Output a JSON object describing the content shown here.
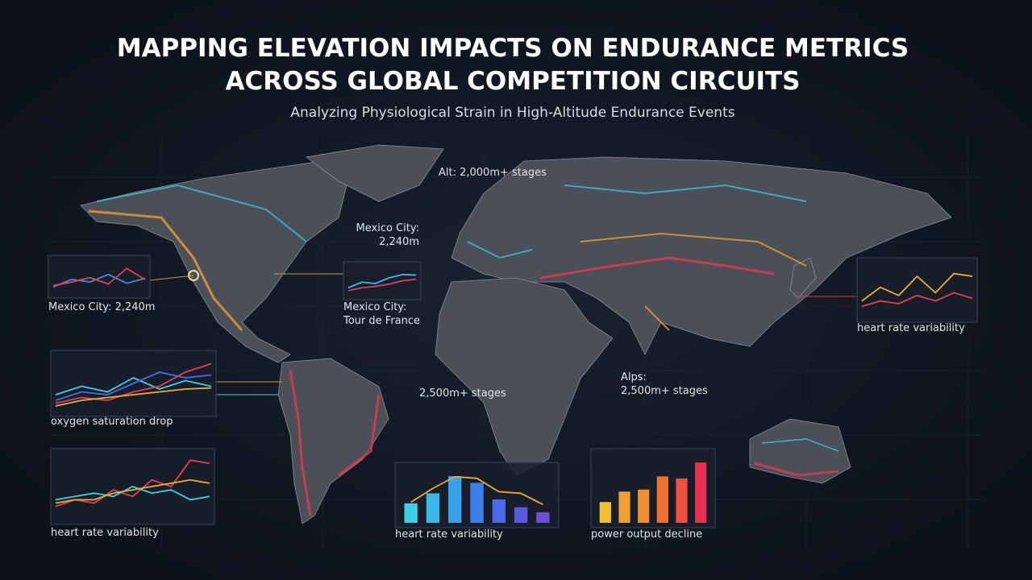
{
  "header": {
    "title": [
      "MAPPING ELEVATION IMPACTS ON ENDURANCE METRICS",
      "ACROSS GLOBAL COMPETITION CIRCUITS"
    ],
    "subtitle": "Analyzing Physiological Strain in High-Altitude Endurance Events"
  },
  "map_labels": [
    {
      "lines": [
        "Alt: 2,000m+ stages"
      ]
    },
    {
      "lines": [
        "Mexico City:",
        "2,240m"
      ]
    },
    {
      "lines": [
        "2,500m+ stages"
      ]
    },
    {
      "lines": [
        "Alps:",
        "2,500m+ stages"
      ]
    }
  ],
  "panels": [
    {
      "type": "line",
      "label": [
        "Mexico City: 2,240m"
      ],
      "ylim": [
        0,
        100
      ],
      "series": [
        {
          "color": "#3a8fe0",
          "values": [
            19,
            42,
            34,
            57,
            30,
            45
          ]
        },
        {
          "color": "#e0405a",
          "values": [
            23,
            34,
            47,
            28,
            75,
            41
          ]
        }
      ]
    },
    {
      "type": "line",
      "label": [
        "Mexico City:",
        "Tour de France"
      ],
      "ylim": [
        0,
        100
      ],
      "series": [
        {
          "color": "#3ab8e8",
          "values": [
            25,
            45,
            40,
            60,
            72,
            70
          ]
        },
        {
          "color": "#e0405a",
          "values": [
            15,
            25,
            30,
            38,
            50,
            55
          ]
        }
      ]
    },
    {
      "type": "line",
      "label": [
        "oxygen saturation drop"
      ],
      "ylim": [
        0,
        100
      ],
      "series": [
        {
          "color": "#3ad0e8",
          "values": [
            30,
            45,
            35,
            60,
            40,
            55,
            45
          ]
        },
        {
          "color": "#4a6ae8",
          "values": [
            20,
            35,
            30,
            50,
            70,
            60,
            65
          ]
        },
        {
          "color": "#e0405a",
          "values": [
            15,
            25,
            20,
            35,
            45,
            70,
            85
          ]
        },
        {
          "color": "#e8b030",
          "values": [
            10,
            20,
            25,
            30,
            35,
            40,
            42
          ]
        }
      ]
    },
    {
      "type": "line",
      "label": [
        "heart rate variability"
      ],
      "ylim": [
        0,
        100
      ],
      "series": [
        {
          "color": "#e0405a",
          "values": [
            20,
            30,
            25,
            45,
            35,
            60,
            50,
            90,
            85
          ]
        },
        {
          "color": "#3ad0e8",
          "values": [
            30,
            35,
            40,
            35,
            50,
            40,
            45,
            30,
            35
          ]
        },
        {
          "color": "#e8b030",
          "values": [
            25,
            30,
            30,
            40,
            45,
            50,
            55,
            60,
            55
          ]
        }
      ]
    },
    {
      "type": "bar",
      "label": [
        "heart rate variability"
      ],
      "ylim": [
        0,
        100
      ],
      "values": [
        35,
        53,
        84,
        72,
        42,
        28,
        19
      ],
      "colors": [
        "#3ad0e8",
        "#3ab8e8",
        "#3aa0e8",
        "#3a80e8",
        "#4a6ae8",
        "#5a5ae0",
        "#6a50d8"
      ],
      "series": [
        {
          "color": "#e8b030",
          "values": [
            37,
            62,
            83,
            80,
            56,
            53,
            33
          ]
        }
      ]
    },
    {
      "type": "bar",
      "label": [
        "power output decline"
      ],
      "ylim": [
        0,
        100
      ],
      "values": [
        30,
        45,
        48,
        67,
        64,
        87
      ],
      "colors": [
        "#f0c030",
        "#f0a030",
        "#f09030",
        "#f07030",
        "#f05040",
        "#e83050"
      ]
    },
    {
      "type": "line",
      "label": [
        "heart rate variability"
      ],
      "ylim": [
        0,
        100
      ],
      "series": [
        {
          "color": "#e8b030",
          "values": [
            30,
            55,
            40,
            75,
            45,
            80,
            75
          ]
        },
        {
          "color": "#e0405a",
          "values": [
            20,
            30,
            25,
            40,
            30,
            45,
            35
          ]
        }
      ]
    }
  ]
}
